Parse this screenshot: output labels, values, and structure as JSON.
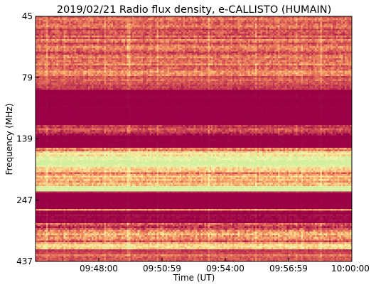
{
  "chart_data": {
    "type": "heatmap",
    "title": "2019/02/21  Radio flux density, e-CALLISTO (HUMAIN)",
    "xlabel": "Time (UT)",
    "ylabel": "Frequency (MHz)",
    "x_tick_labels": [
      "09:48:00",
      "09:50:59",
      "09:54:00",
      "09:56:59",
      "10:00:00"
    ],
    "y_tick_labels": [
      "45",
      "79",
      "139",
      "247",
      "437"
    ],
    "colormap": [
      "#9a0046",
      "#b3254e",
      "#cf4b53",
      "#e8785b",
      "#f6a96c",
      "#fbd98e",
      "#f4f5ad",
      "#d4ee9f"
    ],
    "bands": [
      {
        "from": 0.0,
        "to": 0.02,
        "level": 0.45,
        "var": 0.3
      },
      {
        "from": 0.02,
        "to": 0.22,
        "level": 0.38,
        "var": 0.32
      },
      {
        "from": 0.22,
        "to": 0.24,
        "level": 0.5,
        "var": 0.3
      },
      {
        "from": 0.24,
        "to": 0.3,
        "level": 0.3,
        "var": 0.25
      },
      {
        "from": 0.3,
        "to": 0.44,
        "level": 0.0,
        "var": 0.03
      },
      {
        "from": 0.44,
        "to": 0.48,
        "level": 0.2,
        "var": 0.3
      },
      {
        "from": 0.48,
        "to": 0.53,
        "level": 0.0,
        "var": 0.04
      },
      {
        "from": 0.53,
        "to": 0.55,
        "level": 0.55,
        "var": 0.35
      },
      {
        "from": 0.55,
        "to": 0.57,
        "level": 0.75,
        "var": 0.3
      },
      {
        "from": 0.57,
        "to": 0.59,
        "level": 0.85,
        "var": 0.25
      },
      {
        "from": 0.59,
        "to": 0.61,
        "level": 1.0,
        "var": 0.15
      },
      {
        "from": 0.61,
        "to": 0.63,
        "level": 0.8,
        "var": 0.3
      },
      {
        "from": 0.63,
        "to": 0.65,
        "level": 0.45,
        "var": 0.35
      },
      {
        "from": 0.65,
        "to": 0.69,
        "level": 0.6,
        "var": 0.3
      },
      {
        "from": 0.69,
        "to": 0.71,
        "level": 0.95,
        "var": 0.1
      },
      {
        "from": 0.71,
        "to": 0.72,
        "level": 0.15,
        "var": 0.1
      },
      {
        "from": 0.72,
        "to": 0.78,
        "level": 0.0,
        "var": 0.03
      },
      {
        "from": 0.78,
        "to": 0.79,
        "level": 0.45,
        "var": 0.2
      },
      {
        "from": 0.79,
        "to": 0.84,
        "level": 0.05,
        "var": 0.12
      },
      {
        "from": 0.84,
        "to": 0.87,
        "level": 0.35,
        "var": 0.4
      },
      {
        "from": 0.87,
        "to": 0.9,
        "level": 0.55,
        "var": 0.4
      },
      {
        "from": 0.9,
        "to": 0.92,
        "level": 0.4,
        "var": 0.35
      },
      {
        "from": 0.92,
        "to": 0.95,
        "level": 0.7,
        "var": 0.3
      },
      {
        "from": 0.95,
        "to": 0.97,
        "level": 0.2,
        "var": 0.2
      },
      {
        "from": 0.97,
        "to": 1.0,
        "level": 0.35,
        "var": 0.25
      }
    ]
  }
}
